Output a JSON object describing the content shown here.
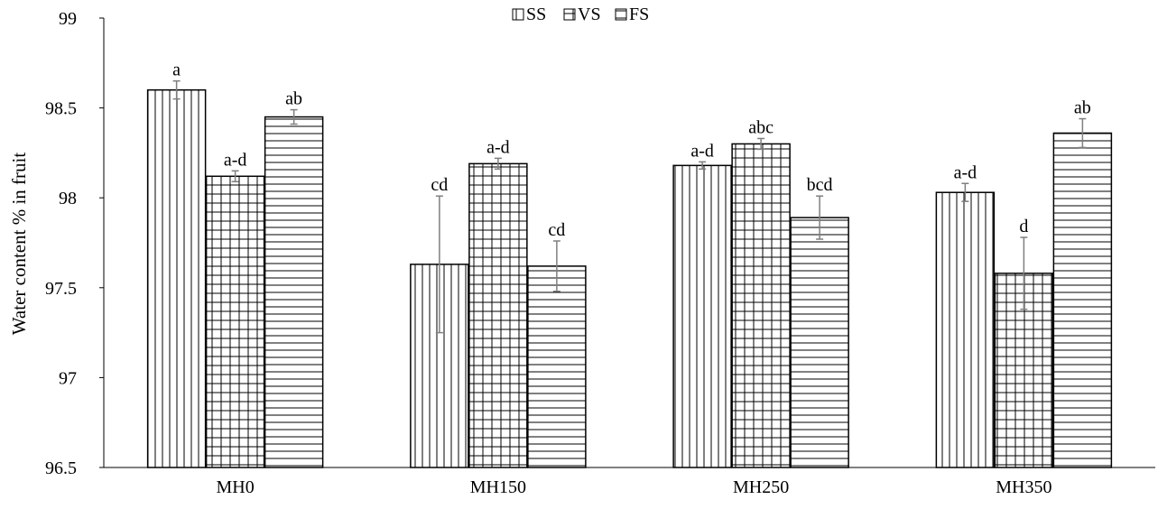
{
  "chart_data": {
    "type": "bar",
    "title": "",
    "xlabel": "",
    "ylabel": "Water content % in fruit",
    "ylim": [
      96.5,
      99
    ],
    "yticks": [
      96.5,
      97,
      97.5,
      98,
      98.5,
      99
    ],
    "ytick_labels": [
      "96.5",
      "97",
      "97.5",
      "98",
      "98.5",
      "99"
    ],
    "categories": [
      "MH0",
      "MH150",
      "MH250",
      "MH350"
    ],
    "grid": false,
    "legend_position": "top-center",
    "series": [
      {
        "name": "SS",
        "pattern": "vertical-lines",
        "values": [
          98.6,
          97.63,
          98.18,
          98.03
        ],
        "errors": [
          0.05,
          0.38,
          0.02,
          0.05
        ],
        "labels": [
          "a",
          "cd",
          "a-d",
          "a-d"
        ]
      },
      {
        "name": "VS",
        "pattern": "grid-lines",
        "values": [
          98.12,
          98.19,
          98.3,
          97.58
        ],
        "errors": [
          0.03,
          0.03,
          0.03,
          0.2
        ],
        "labels": [
          "a-d",
          "a-d",
          "abc",
          "d"
        ]
      },
      {
        "name": "FS",
        "pattern": "horizontal-lines",
        "values": [
          98.45,
          97.62,
          97.89,
          98.36
        ],
        "errors": [
          0.04,
          0.14,
          0.12,
          0.08
        ],
        "labels": [
          "ab",
          "cd",
          "bcd",
          "ab"
        ]
      }
    ],
    "colors": {
      "bar_stroke": "#000000",
      "bar_fill": "#ffffff",
      "error_bar": "#7f7f7f",
      "axis": "#000000"
    }
  }
}
